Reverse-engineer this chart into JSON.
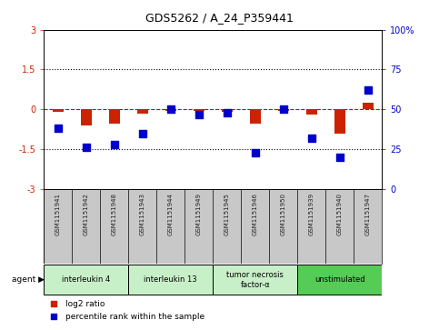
{
  "title": "GDS5262 / A_24_P359441",
  "samples": [
    "GSM1151941",
    "GSM1151942",
    "GSM1151948",
    "GSM1151943",
    "GSM1151944",
    "GSM1151949",
    "GSM1151945",
    "GSM1151946",
    "GSM1151950",
    "GSM1151939",
    "GSM1151940",
    "GSM1151947"
  ],
  "log2_ratio": [
    -0.1,
    -0.6,
    -0.55,
    -0.15,
    -0.05,
    -0.05,
    -0.08,
    -0.55,
    -0.05,
    -0.2,
    -0.9,
    0.25
  ],
  "percentile_rank": [
    38,
    26,
    28,
    35,
    50,
    47,
    48,
    23,
    50,
    32,
    20,
    62
  ],
  "agents": [
    {
      "label": "interleukin 4",
      "start": 0,
      "end": 3,
      "color": "#c8f0c8"
    },
    {
      "label": "interleukin 13",
      "start": 3,
      "end": 6,
      "color": "#c8f0c8"
    },
    {
      "label": "tumor necrosis\nfactor-α",
      "start": 6,
      "end": 9,
      "color": "#c8f0c8"
    },
    {
      "label": "unstimulated",
      "start": 9,
      "end": 12,
      "color": "#55cc55"
    }
  ],
  "ylim_left": [
    -3,
    3
  ],
  "ylim_right": [
    0,
    100
  ],
  "yticks_left": [
    -3,
    -1.5,
    0,
    1.5,
    3
  ],
  "yticks_right": [
    0,
    25,
    50,
    75,
    100
  ],
  "bar_color": "#cc2200",
  "dot_color": "#0000cc",
  "hline_color": "#cc0000",
  "dotted_color": "black",
  "bg_color": "#ffffff",
  "plot_bg": "#ffffff",
  "axis_label_color_left": "#cc2200",
  "axis_label_color_right": "#0000cc",
  "legend_items": [
    "log2 ratio",
    "percentile rank within the sample"
  ],
  "bar_width": 0.4,
  "dot_size": 28,
  "sample_bg": "#c8c8c8"
}
